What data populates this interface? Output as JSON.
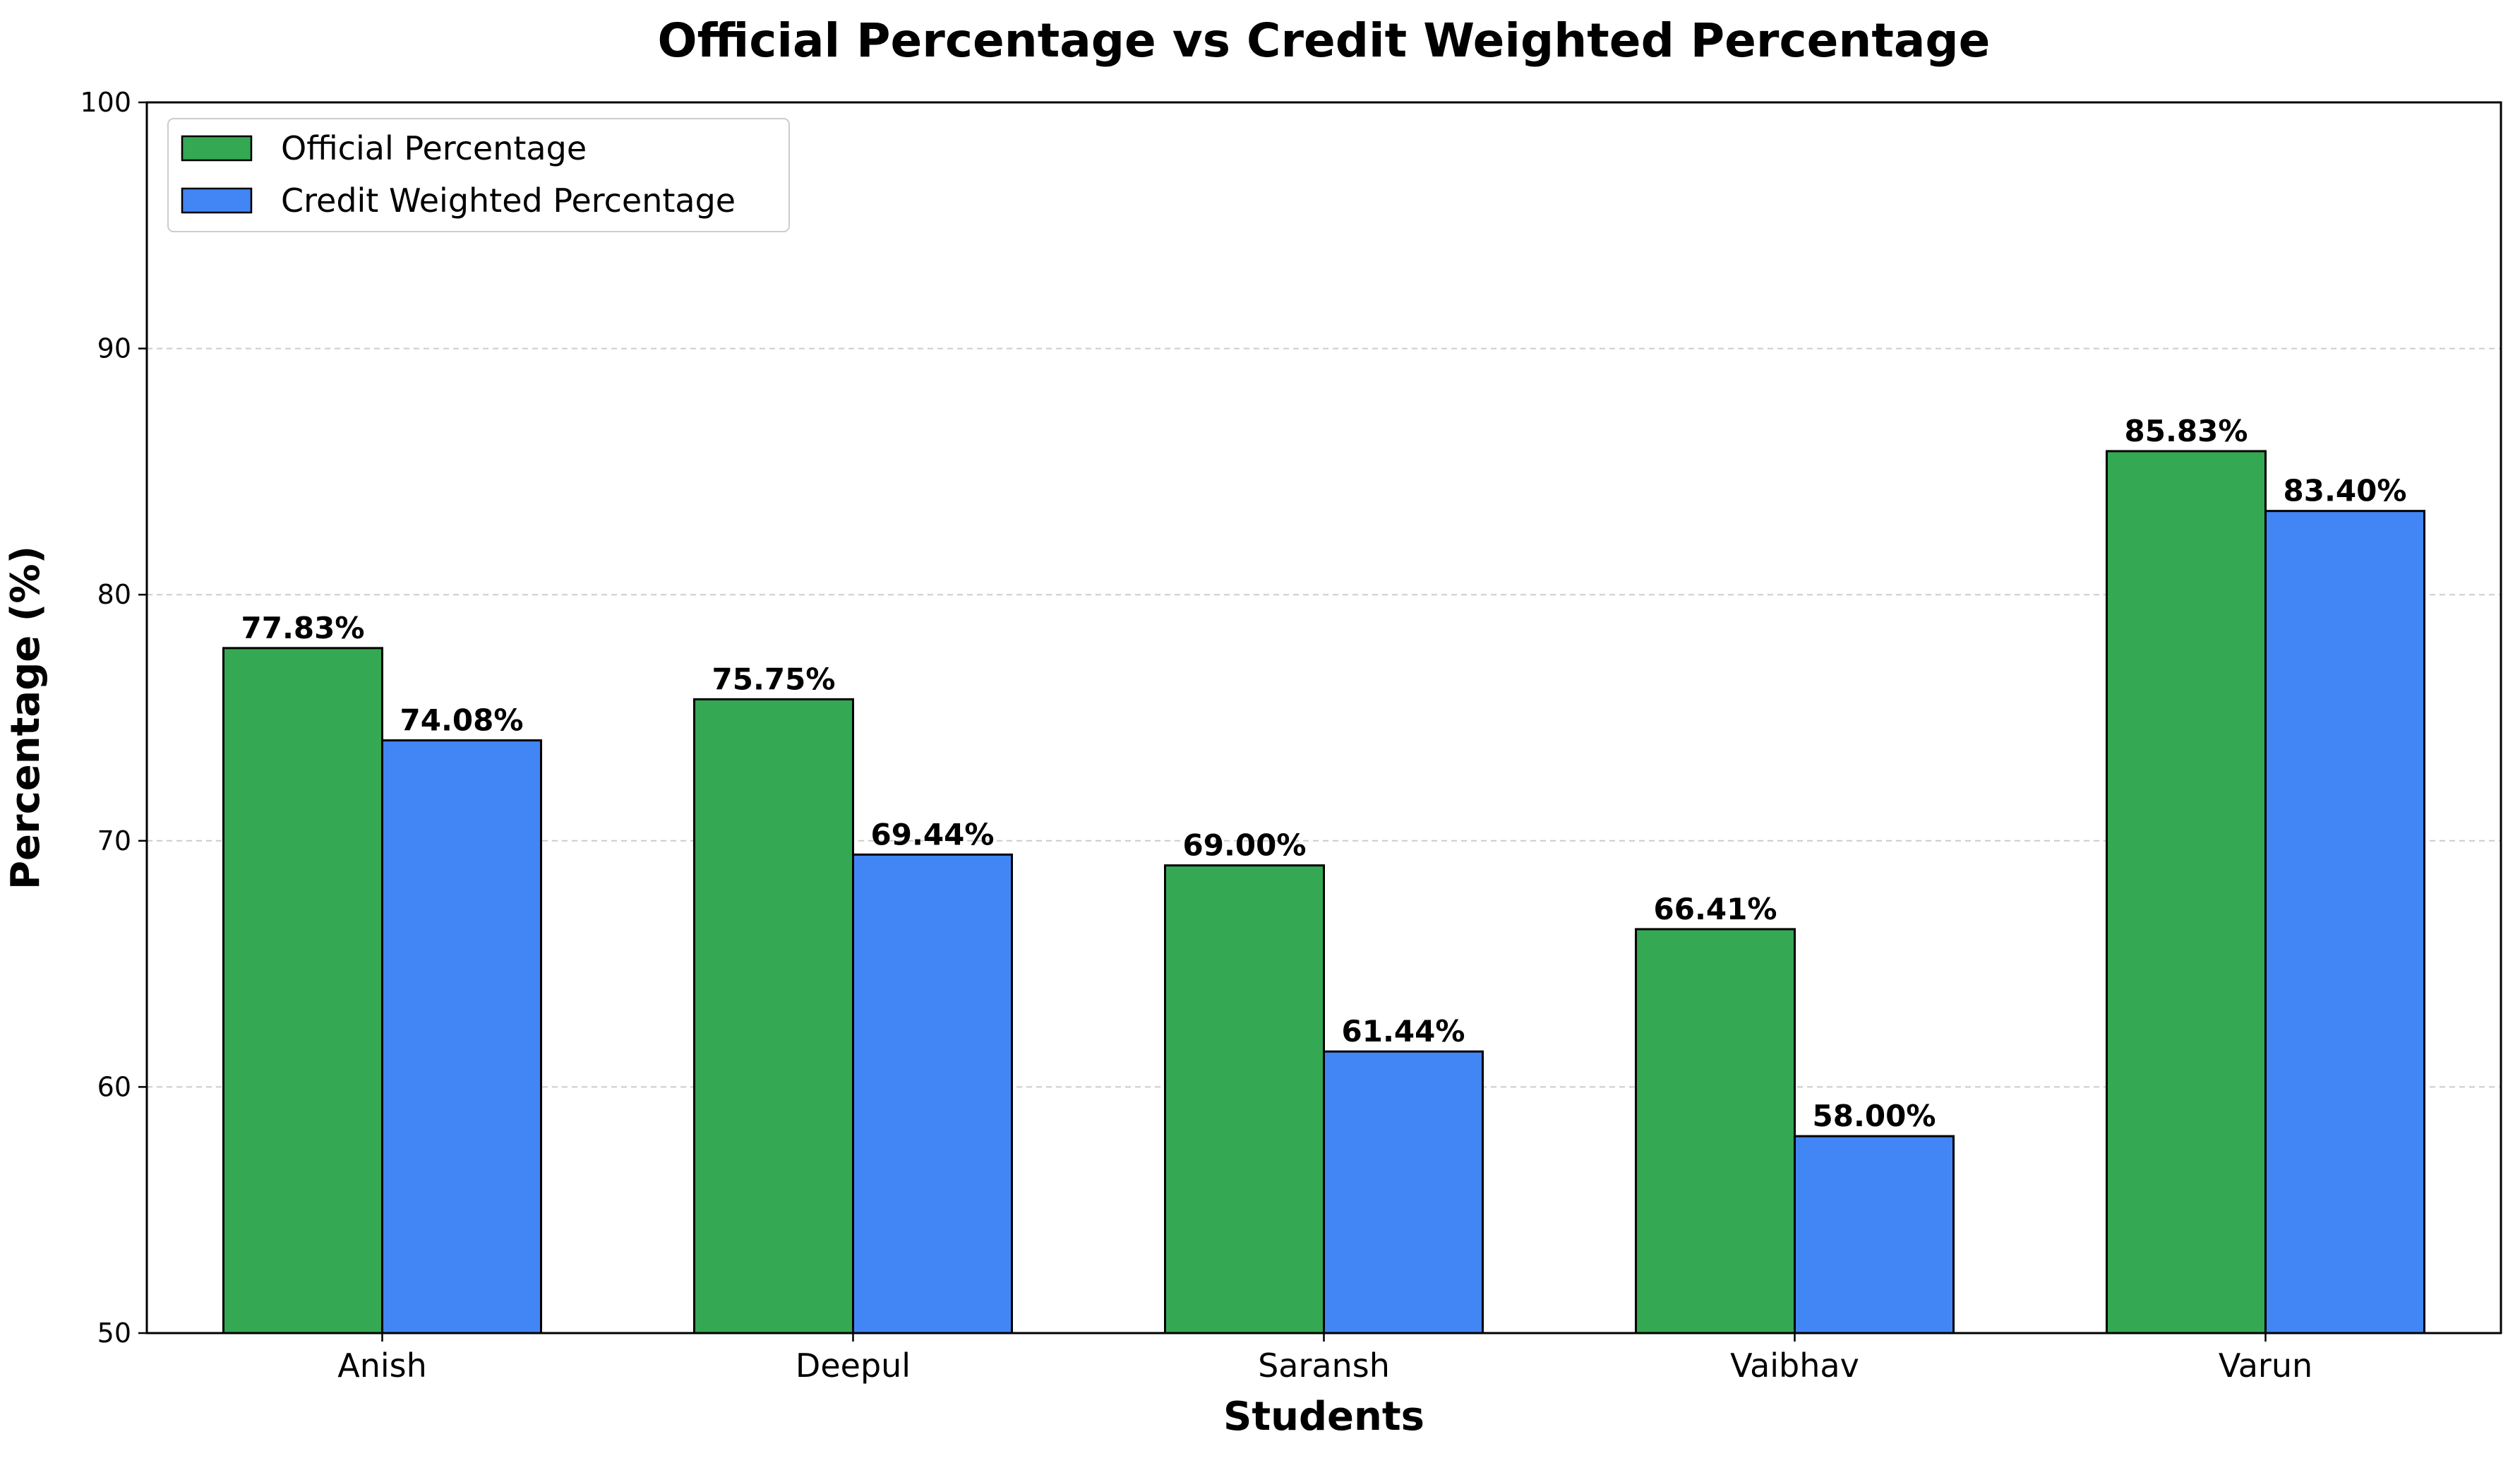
{
  "chart_data": {
    "type": "bar",
    "title": "Official Percentage vs Credit Weighted Percentage",
    "xlabel": "Students",
    "ylabel": "Percentage (%)",
    "categories": [
      "Anish",
      "Deepul",
      "Saransh",
      "Vaibhav",
      "Varun"
    ],
    "series": [
      {
        "name": "Official Percentage",
        "color": "#34a853",
        "values": [
          77.83,
          75.75,
          69.0,
          66.41,
          85.83
        ],
        "labels": [
          "77.83%",
          "75.75%",
          "69.00%",
          "66.41%",
          "85.83%"
        ]
      },
      {
        "name": "Credit Weighted Percentage",
        "color": "#4285f4",
        "values": [
          74.08,
          69.44,
          61.44,
          58.0,
          83.4
        ],
        "labels": [
          "74.08%",
          "69.44%",
          "61.44%",
          "58.00%",
          "83.40%"
        ]
      }
    ],
    "ylim": [
      50,
      100
    ],
    "yticks": [
      50,
      60,
      70,
      80,
      90,
      100
    ],
    "ytick_labels": [
      "50",
      "60",
      "70",
      "80",
      "90",
      "100"
    ],
    "grid": "horizontal dashed",
    "legend_position": "top-left"
  }
}
